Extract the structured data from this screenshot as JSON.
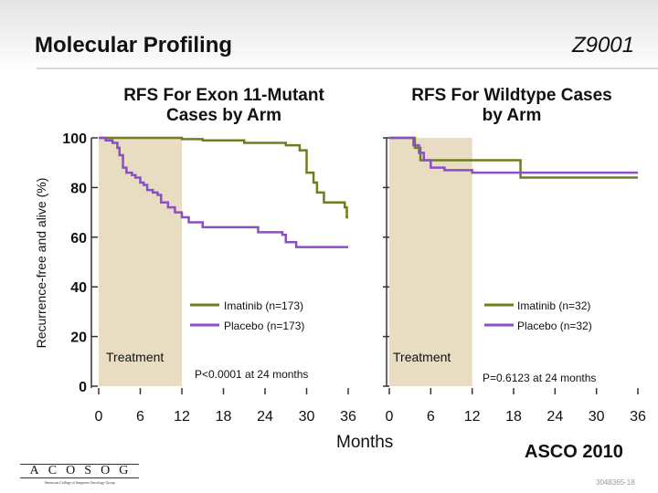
{
  "slide": {
    "title": "Molecular Profiling",
    "study_id": "Z9001",
    "ylabel": "Recurrence-free and alive (%)",
    "xlabel": "Months",
    "footer": "ASCO 2010",
    "slide_id": "3048365-18",
    "logo": {
      "letters": [
        "A",
        "C",
        "O",
        "S",
        "O",
        "G"
      ],
      "subtitle": "American College of Surgeons Oncology Group"
    }
  },
  "colors": {
    "imatinib": "#6e7d1e",
    "placebo": "#8a4fc4",
    "treatment_band": "#e8ddc2",
    "axis": "#333333"
  },
  "chart_data": [
    {
      "type": "line",
      "title": "RFS For Exon 11-Mutant Cases by Arm",
      "xlabel": "Months",
      "ylabel": "Recurrence-free and alive (%)",
      "xlim": [
        0,
        36
      ],
      "ylim": [
        0,
        100
      ],
      "xticks": [
        0,
        6,
        12,
        18,
        24,
        30,
        36
      ],
      "yticks": [
        0,
        20,
        40,
        60,
        80,
        100
      ],
      "treatment_band": [
        0,
        12
      ],
      "treatment_label": "Treatment",
      "pvalue_text": "P<0.0001 at 24 months",
      "series": [
        {
          "name": "Imatinib (n=173)",
          "color": "#6e7d1e",
          "steps": [
            [
              0,
              100
            ],
            [
              6,
              100
            ],
            [
              12,
              99.5
            ],
            [
              15,
              99
            ],
            [
              21,
              98
            ],
            [
              27,
              97
            ],
            [
              29,
              95
            ],
            [
              30,
              86
            ],
            [
              31,
              82
            ],
            [
              31.5,
              78
            ],
            [
              32.5,
              74
            ],
            [
              35.5,
              72
            ],
            [
              35.8,
              68
            ],
            [
              36,
              68
            ]
          ]
        },
        {
          "name": "Placebo (n=173)",
          "color": "#8a4fc4",
          "steps": [
            [
              0,
              100
            ],
            [
              1,
              99
            ],
            [
              2,
              98
            ],
            [
              2.7,
              96
            ],
            [
              3,
              93
            ],
            [
              3.5,
              88
            ],
            [
              4,
              86
            ],
            [
              4.8,
              85
            ],
            [
              5.3,
              84
            ],
            [
              6,
              82
            ],
            [
              6.5,
              81
            ],
            [
              7,
              79
            ],
            [
              7.8,
              78
            ],
            [
              8.5,
              77
            ],
            [
              9,
              74
            ],
            [
              10,
              72
            ],
            [
              11,
              70
            ],
            [
              12,
              68
            ],
            [
              13,
              66
            ],
            [
              15,
              64
            ],
            [
              16,
              64
            ],
            [
              22,
              64
            ],
            [
              23,
              62
            ],
            [
              26.5,
              61
            ],
            [
              27,
              58
            ],
            [
              28.5,
              56
            ],
            [
              36,
              56
            ]
          ]
        }
      ]
    },
    {
      "type": "line",
      "title": "RFS For Wildtype Cases by Arm",
      "xlabel": "Months",
      "ylabel": "Recurrence-free and alive (%)",
      "xlim": [
        0,
        36
      ],
      "ylim": [
        0,
        100
      ],
      "xticks": [
        0,
        6,
        12,
        18,
        24,
        30,
        36
      ],
      "yticks": [
        0,
        20,
        40,
        60,
        80,
        100
      ],
      "treatment_band": [
        0,
        12
      ],
      "treatment_label": "Treatment",
      "pvalue_text": "P=0.6123 at 24 months",
      "series": [
        {
          "name": "Imatinib (n=32)",
          "color": "#6e7d1e",
          "steps": [
            [
              0,
              100
            ],
            [
              3,
              100
            ],
            [
              3.7,
              96
            ],
            [
              4.5,
              91
            ],
            [
              18,
              91
            ],
            [
              19,
              84
            ],
            [
              36,
              84
            ]
          ]
        },
        {
          "name": "Placebo (n=32)",
          "color": "#8a4fc4",
          "steps": [
            [
              0,
              100
            ],
            [
              3.5,
              97
            ],
            [
              4.3,
              94
            ],
            [
              5,
              91
            ],
            [
              6,
              88
            ],
            [
              8,
              87
            ],
            [
              12,
              86
            ],
            [
              27,
              86
            ],
            [
              29,
              86
            ],
            [
              36,
              86
            ]
          ]
        }
      ]
    }
  ]
}
